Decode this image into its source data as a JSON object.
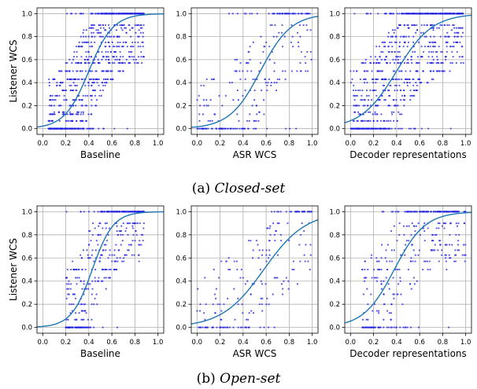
{
  "figure": {
    "row_captions": [
      {
        "label": "(a)",
        "title": "Closed-set"
      },
      {
        "label": "(b)",
        "title": "Open-set"
      }
    ],
    "shared_ylabel": "Listener WCS",
    "point_color": "#2020e0",
    "curve_color": "#1f77b4"
  },
  "chart_data": [
    {
      "type": "scatter",
      "row": "Closed-set",
      "xlabel": "Baseline",
      "ylabel": "Listener WCS",
      "xlim": [
        -0.05,
        1.05
      ],
      "ylim": [
        -0.05,
        1.05
      ],
      "xticks": [
        "0.0",
        "0.2",
        "0.4",
        "0.6",
        "0.8",
        "1.0"
      ],
      "yticks": [
        "0.0",
        "0.2",
        "0.4",
        "0.6",
        "0.8",
        "1.0"
      ],
      "grid": true,
      "points": {
        "x_range": [
          0.05,
          0.88
        ],
        "density": "dense",
        "n_approx": 900
      },
      "fit": {
        "kind": "logistic",
        "midpoint": 0.4,
        "steepness": 9.5
      }
    },
    {
      "type": "scatter",
      "row": "Closed-set",
      "xlabel": "ASR WCS",
      "ylabel": "",
      "xlim": [
        -0.05,
        1.05
      ],
      "ylim": [
        -0.05,
        1.05
      ],
      "xticks": [
        "0.0",
        "0.2",
        "0.4",
        "0.6",
        "0.8",
        "1.0"
      ],
      "yticks": [
        "0.0",
        "0.2",
        "0.4",
        "0.6",
        "0.8",
        "1.0"
      ],
      "grid": true,
      "points": {
        "x_range": [
          0.0,
          1.0
        ],
        "density": "sparse",
        "n_approx": 260
      },
      "fit": {
        "kind": "logistic",
        "midpoint": 0.55,
        "steepness": 7.5
      }
    },
    {
      "type": "scatter",
      "row": "Closed-set",
      "xlabel": "Decoder representations",
      "ylabel": "",
      "xlim": [
        -0.05,
        1.05
      ],
      "ylim": [
        -0.05,
        1.05
      ],
      "xticks": [
        "0.0",
        "0.2",
        "0.4",
        "0.6",
        "0.8",
        "1.0"
      ],
      "yticks": [
        "0.0",
        "0.2",
        "0.4",
        "0.6",
        "0.8",
        "1.0"
      ],
      "grid": true,
      "points": {
        "x_range": [
          0.0,
          0.98
        ],
        "density": "dense",
        "n_approx": 900
      },
      "fit": {
        "kind": "logistic",
        "midpoint": 0.4,
        "steepness": 6.5
      }
    },
    {
      "type": "scatter",
      "row": "Open-set",
      "xlabel": "Baseline",
      "ylabel": "Listener WCS",
      "xlim": [
        -0.05,
        1.05
      ],
      "ylim": [
        -0.05,
        1.05
      ],
      "xticks": [
        "0.0",
        "0.2",
        "0.4",
        "0.6",
        "0.8",
        "1.0"
      ],
      "yticks": [
        "0.0",
        "0.2",
        "0.4",
        "0.6",
        "0.8",
        "1.0"
      ],
      "grid": true,
      "points": {
        "x_range": [
          0.2,
          0.88
        ],
        "density": "medium",
        "n_approx": 450
      },
      "fit": {
        "kind": "logistic",
        "midpoint": 0.43,
        "steepness": 11
      }
    },
    {
      "type": "scatter",
      "row": "Open-set",
      "xlabel": "ASR WCS",
      "ylabel": "",
      "xlim": [
        -0.05,
        1.05
      ],
      "ylim": [
        -0.05,
        1.05
      ],
      "xticks": [
        "0.0",
        "0.2",
        "0.4",
        "0.6",
        "0.8",
        "1.0"
      ],
      "yticks": [
        "0.0",
        "0.2",
        "0.4",
        "0.6",
        "0.8",
        "1.0"
      ],
      "grid": true,
      "points": {
        "x_range": [
          0.0,
          1.0
        ],
        "density": "sparse",
        "n_approx": 200
      },
      "fit": {
        "kind": "logistic",
        "midpoint": 0.58,
        "steepness": 5.5
      }
    },
    {
      "type": "scatter",
      "row": "Open-set",
      "xlabel": "Decoder representations",
      "ylabel": "",
      "xlim": [
        -0.05,
        1.05
      ],
      "ylim": [
        -0.05,
        1.05
      ],
      "xticks": [
        "0.0",
        "0.2",
        "0.4",
        "0.6",
        "0.8",
        "1.0"
      ],
      "yticks": [
        "0.0",
        "0.2",
        "0.4",
        "0.6",
        "0.8",
        "1.0"
      ],
      "grid": true,
      "points": {
        "x_range": [
          0.1,
          1.0
        ],
        "density": "medium",
        "n_approx": 380
      },
      "fit": {
        "kind": "logistic",
        "midpoint": 0.38,
        "steepness": 7.5
      }
    }
  ]
}
